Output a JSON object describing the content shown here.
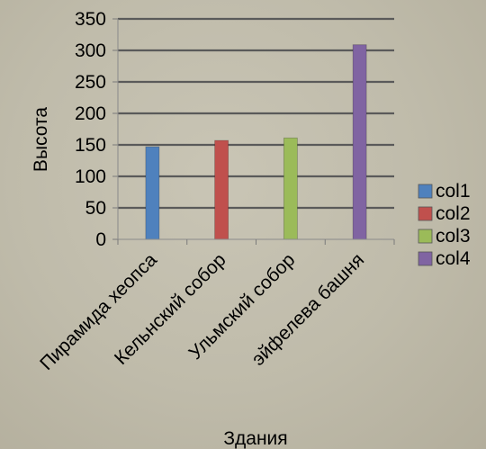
{
  "chart_data": {
    "type": "bar",
    "categories": [
      "Пирамида хеопса",
      "Кельнский собор",
      "Ульмский собор",
      "эйфелева башня"
    ],
    "series": [
      {
        "name": "col1",
        "color": "#4f81bd",
        "values": [
          147,
          0,
          0,
          0
        ]
      },
      {
        "name": "col2",
        "color": "#c0504d",
        "values": [
          0,
          157,
          0,
          0
        ]
      },
      {
        "name": "col3",
        "color": "#9bbb59",
        "values": [
          0,
          0,
          161,
          0
        ]
      },
      {
        "name": "col4",
        "color": "#8064a2",
        "values": [
          0,
          0,
          0,
          309
        ]
      }
    ],
    "title": "",
    "xlabel": "Здания",
    "ylabel": "Высота",
    "ylim": [
      0,
      350
    ],
    "yticks": [
      0,
      50,
      100,
      150,
      200,
      250,
      300,
      350
    ],
    "grid": true,
    "legend": "right"
  }
}
